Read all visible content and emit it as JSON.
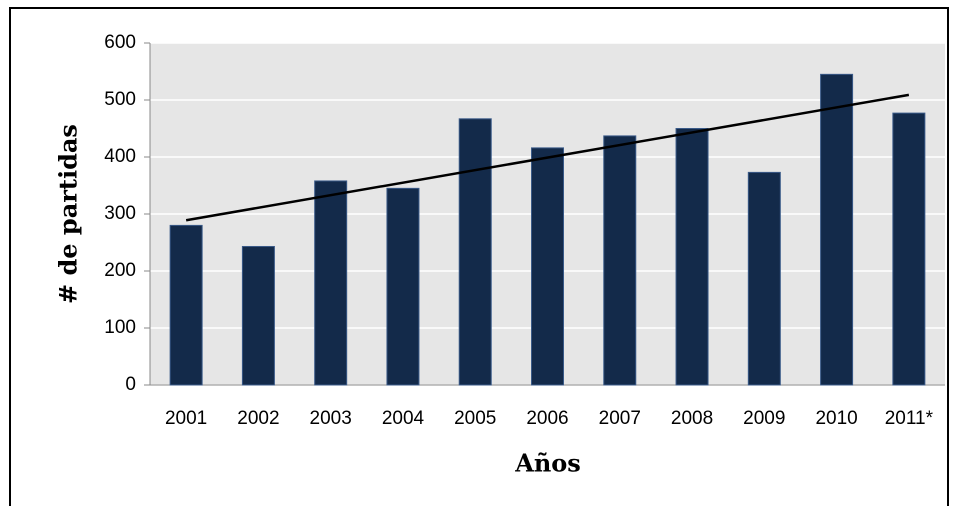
{
  "chart_data": {
    "type": "bar",
    "categories": [
      "2001",
      "2002",
      "2003",
      "2004",
      "2005",
      "2006",
      "2007",
      "2008",
      "2009",
      "2010",
      "2011*"
    ],
    "values": [
      280,
      243,
      358,
      345,
      467,
      416,
      437,
      450,
      373,
      545,
      477
    ],
    "color": "#132a4a",
    "trendline": {
      "values": [
        289,
        509
      ],
      "color": "#000000"
    },
    "xlabel": "Años",
    "ylabel": "# de partidas",
    "ylim": [
      0,
      600
    ],
    "yticks": [
      0,
      100,
      200,
      300,
      400,
      500,
      600
    ],
    "grid": true
  }
}
